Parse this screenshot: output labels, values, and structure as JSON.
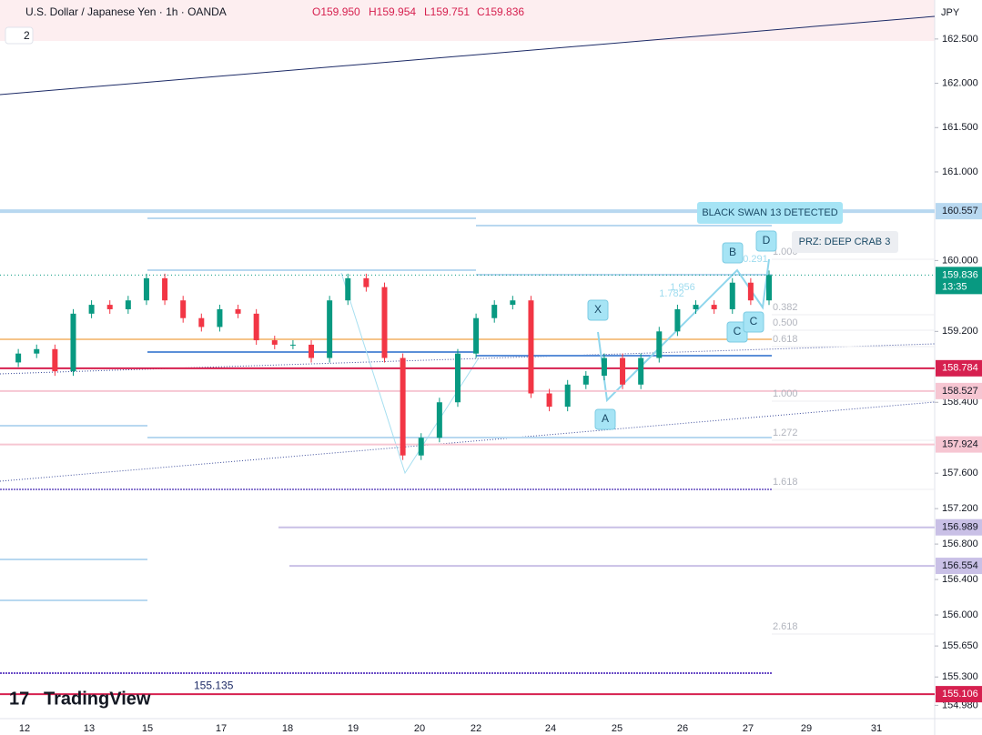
{
  "header": {
    "symbol": "U.S. Dollar / Japanese Yen · 1h · OANDA",
    "open": "O159.950",
    "high": "H159.954",
    "low": "L159.751",
    "close": "C159.836",
    "badge": "2",
    "currency": "JPY",
    "logo": "TradingView"
  },
  "chart_data": {
    "type": "candlestick",
    "ylim": [
      154.83,
      162.94
    ],
    "yticks": [
      {
        "value": 162.5,
        "label": "162.500"
      },
      {
        "value": 162.0,
        "label": "162.000"
      },
      {
        "value": 161.5,
        "label": "161.500"
      },
      {
        "value": 161.0,
        "label": "161.000"
      },
      {
        "value": 160.0,
        "label": "160.000"
      },
      {
        "value": 159.2,
        "label": "159.200"
      },
      {
        "value": 158.4,
        "label": "158.400"
      },
      {
        "value": 157.6,
        "label": "157.600"
      },
      {
        "value": 157.2,
        "label": "157.200"
      },
      {
        "value": 156.8,
        "label": "156.800"
      },
      {
        "value": 156.4,
        "label": "156.400"
      },
      {
        "value": 156.0,
        "label": "156.000"
      },
      {
        "value": 155.65,
        "label": "155.650"
      },
      {
        "value": 155.3,
        "label": "155.300"
      },
      {
        "value": 154.98,
        "label": "154.980"
      }
    ],
    "x_labels": [
      "12",
      "13",
      "15",
      "17",
      "18",
      "19",
      "20",
      "22",
      "24",
      "25",
      "26",
      "27",
      "29",
      "31"
    ],
    "closes": [
      158.85,
      158.95,
      159.0,
      158.75,
      159.4,
      159.5,
      159.45,
      159.55,
      159.8,
      159.55,
      159.35,
      159.25,
      159.45,
      159.4,
      159.1,
      159.05,
      159.05,
      158.9,
      159.55,
      159.8,
      159.7,
      158.9,
      157.8,
      158.0,
      158.4,
      158.95,
      159.35,
      159.5,
      159.55,
      158.5,
      158.35,
      158.6,
      158.7,
      158.9,
      158.6,
      158.9,
      159.2,
      159.45,
      159.5,
      159.45,
      159.75,
      159.55,
      159.836
    ],
    "up_color": "#089981",
    "down_color": "#f23645",
    "current": {
      "value": 159.836,
      "label": "159.836",
      "countdown": "13:35",
      "color": "#089981"
    },
    "levels": [
      {
        "value": 160.557,
        "label": "160.557",
        "color": "#b8d8f0"
      },
      {
        "value": 158.784,
        "label": "158.784",
        "color": "#d6204f"
      },
      {
        "value": 158.527,
        "label": "158.527",
        "color": "#f6c6d2"
      },
      {
        "value": 157.924,
        "label": "157.924",
        "color": "#f6c6d2"
      },
      {
        "value": 156.989,
        "label": "156.989",
        "color": "#c9c0e6"
      },
      {
        "value": 156.554,
        "label": "156.554",
        "color": "#c9c0e6"
      },
      {
        "value": 155.106,
        "label": "155.106",
        "color": "#d6204f"
      }
    ],
    "line_note": {
      "value": 155.135,
      "label": "155.135"
    },
    "fib_labels": [
      "1.000",
      "0.382",
      "0.500",
      "0.618",
      "1.000",
      "1.272",
      "1.618",
      "2.618"
    ],
    "pattern_labels": [
      "X",
      "A",
      "B",
      "C",
      "D",
      "C"
    ],
    "ratio_labels": [
      "1.782",
      "1.956",
      "0.291"
    ],
    "annotations": [
      "BLACK SWAN 13 DETECTED",
      "PRZ: DEEP CRAB 3"
    ]
  }
}
